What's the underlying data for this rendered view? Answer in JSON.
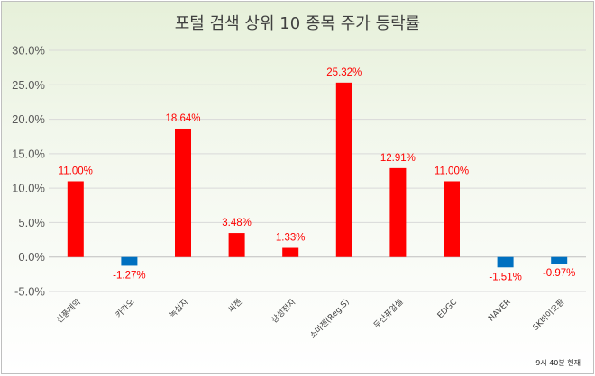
{
  "chart_data": {
    "type": "bar",
    "title": "포털 검색 상위 10 종목 주가 등락률",
    "footnote": "9시 40분 현재",
    "categories": [
      "신풍제약",
      "카카오",
      "녹십자",
      "씨젠",
      "삼성전자",
      "소마젠(Reg.S)",
      "두산퓨얼셀",
      "EDGC",
      "NAVER",
      "SK바이오팜"
    ],
    "values": [
      11.0,
      -1.27,
      18.64,
      3.48,
      1.33,
      25.32,
      12.91,
      11.0,
      -1.51,
      -0.97
    ],
    "labels": [
      "11.00%",
      "-1.27%",
      "18.64%",
      "3.48%",
      "1.33%",
      "25.32%",
      "12.91%",
      "11.00%",
      "-1.51%",
      "-0.97%"
    ],
    "yticks": [
      "30.0%",
      "25.0%",
      "20.0%",
      "15.0%",
      "10.0%",
      "5.0%",
      "0.0%",
      "-5.0%"
    ],
    "ylim": [
      -5,
      30
    ],
    "xlabel": "",
    "ylabel": "",
    "grid": true,
    "legend": "none",
    "colors": {
      "positive": "#ff0000",
      "negative": "#0070c0",
      "grid": "#d9d9d9",
      "axis": "#bfbfbf"
    }
  }
}
